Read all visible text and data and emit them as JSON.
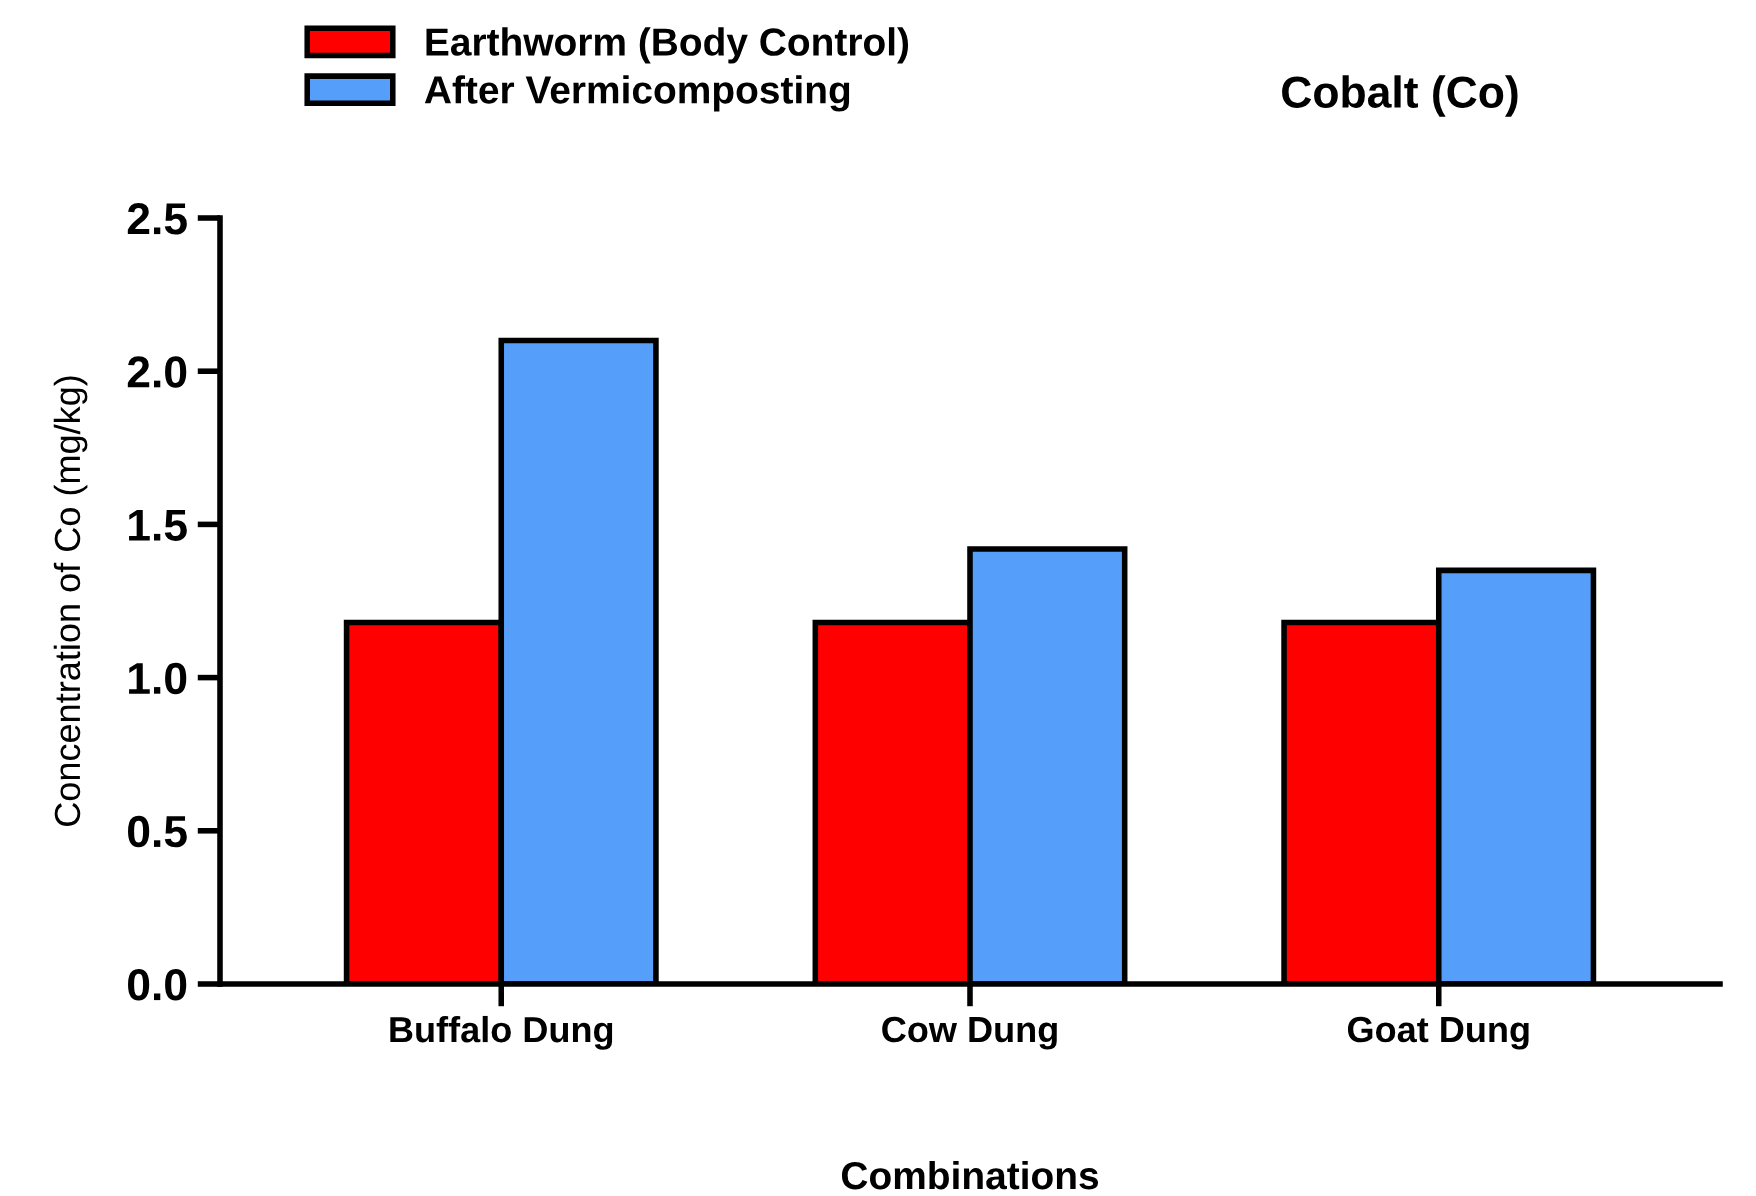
{
  "chart_data": {
    "type": "bar",
    "title": "Cobalt (Co)",
    "xlabel": "Combinations",
    "ylabel": "Concentration of Co (mg/kg)",
    "categories": [
      "Buffalo Dung",
      "Cow Dung",
      "Goat Dung"
    ],
    "series": [
      {
        "name": "Earthworm (Body Control)",
        "color": "#ff0000",
        "values": [
          1.18,
          1.18,
          1.18
        ]
      },
      {
        "name": "After Vermicomposting",
        "color": "#559ffa",
        "values": [
          2.1,
          1.42,
          1.35
        ]
      }
    ],
    "ylim": [
      0,
      2.5
    ],
    "yticks": [
      {
        "value": 0,
        "label": "0.0"
      },
      {
        "value": 0.5,
        "label": "0.5"
      },
      {
        "value": 1,
        "label": "1.0"
      },
      {
        "value": 1.5,
        "label": "1.5"
      },
      {
        "value": 2,
        "label": "2.0"
      },
      {
        "value": 2.5,
        "label": "2.5"
      }
    ],
    "grid": false,
    "legend": "top left"
  }
}
